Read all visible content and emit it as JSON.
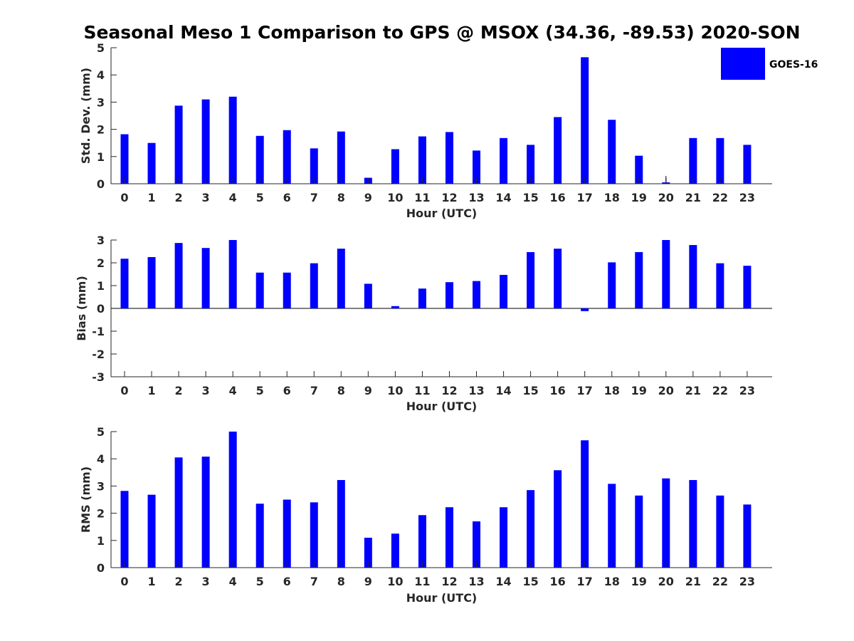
{
  "title": "Seasonal Meso 1 Comparison to GPS @ MSOX (34.36, -89.53) 2020-SON",
  "legend": {
    "label": "GOES-16",
    "color": "#0000ff"
  },
  "chart_data": [
    {
      "type": "bar",
      "categories": [
        "0",
        "1",
        "2",
        "3",
        "4",
        "5",
        "6",
        "7",
        "8",
        "9",
        "10",
        "11",
        "12",
        "13",
        "14",
        "15",
        "16",
        "17",
        "18",
        "19",
        "20",
        "21",
        "22",
        "23"
      ],
      "series": [
        {
          "name": "GOES-16",
          "values": [
            1.82,
            1.5,
            2.87,
            3.1,
            3.2,
            1.76,
            1.97,
            1.3,
            1.92,
            0.22,
            1.27,
            1.74,
            1.9,
            1.22,
            1.68,
            1.43,
            2.45,
            4.65,
            2.35,
            1.03,
            0.05,
            1.68,
            1.68,
            1.43
          ]
        }
      ],
      "xlabel": "Hour (UTC)",
      "ylabel": "Std. Dev. (mm)",
      "ylim": [
        0,
        5
      ],
      "yticks": [
        "0",
        "1",
        "2",
        "3",
        "4",
        "5"
      ],
      "error_bar_hours": [
        "20"
      ],
      "grid": false
    },
    {
      "type": "bar",
      "categories": [
        "0",
        "1",
        "2",
        "3",
        "4",
        "5",
        "6",
        "7",
        "8",
        "9",
        "10",
        "11",
        "12",
        "13",
        "14",
        "15",
        "16",
        "17",
        "18",
        "19",
        "20",
        "21",
        "22",
        "23"
      ],
      "series": [
        {
          "name": "GOES-16",
          "values": [
            2.18,
            2.25,
            2.87,
            2.65,
            3.0,
            1.57,
            1.57,
            1.98,
            2.62,
            1.08,
            0.1,
            0.87,
            1.15,
            1.2,
            1.47,
            2.47,
            2.62,
            -0.12,
            2.02,
            2.47,
            3.0,
            2.78,
            1.98,
            1.87
          ]
        }
      ],
      "xlabel": "Hour (UTC)",
      "ylabel": "Bias (mm)",
      "ylim": [
        -3,
        3
      ],
      "yticks": [
        "-3",
        "-2",
        "-1",
        "0",
        "1",
        "2",
        "3"
      ],
      "grid": false
    },
    {
      "type": "bar",
      "categories": [
        "0",
        "1",
        "2",
        "3",
        "4",
        "5",
        "6",
        "7",
        "8",
        "9",
        "10",
        "11",
        "12",
        "13",
        "14",
        "15",
        "16",
        "17",
        "18",
        "19",
        "20",
        "21",
        "22",
        "23"
      ],
      "series": [
        {
          "name": "GOES-16",
          "values": [
            2.82,
            2.68,
            4.05,
            4.08,
            5.0,
            2.35,
            2.5,
            2.4,
            3.22,
            1.1,
            1.25,
            1.93,
            2.22,
            1.7,
            2.22,
            2.85,
            3.58,
            4.68,
            3.08,
            2.65,
            3.28,
            3.22,
            2.65,
            2.32
          ]
        }
      ],
      "xlabel": "Hour (UTC)",
      "ylabel": "RMS (mm)",
      "ylim": [
        0,
        5
      ],
      "yticks": [
        "0",
        "1",
        "2",
        "3",
        "4",
        "5"
      ],
      "grid": false
    }
  ]
}
